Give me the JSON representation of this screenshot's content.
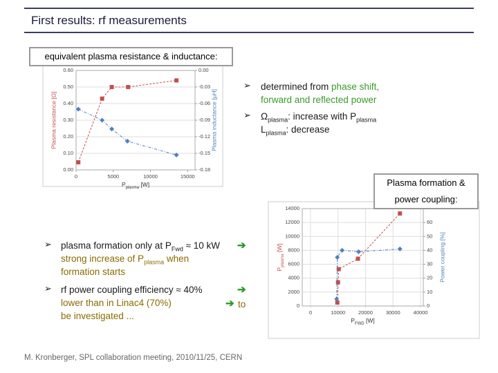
{
  "header": {
    "title": "First results: rf measurements"
  },
  "boxes": [
    "equivalent plasma resistance & inductance:",
    "Plasma formation & power coupling:"
  ],
  "right_bullets": [
    [
      [
        {
          "t": "determined from "
        },
        {
          "t": "phase shift,",
          "color": "#3a9a2a"
        }
      ],
      [
        {
          "t": "forward and reflected power",
          "color": "#3a9a2a"
        }
      ]
    ],
    [
      [
        {
          "t": "Ω"
        },
        {
          "t": "plasma",
          "sub": true
        },
        {
          "t": ": increase with P"
        },
        {
          "t": "plasma",
          "sub": true
        }
      ],
      [
        {
          "t": "L"
        },
        {
          "t": "plasma",
          "sub": true
        },
        {
          "t": ": decrease"
        }
      ]
    ]
  ],
  "left_bullets": [
    [
      [
        {
          "t": "plasma formation only at P"
        },
        {
          "t": "Fwd",
          "sub": true
        },
        {
          "t": " ≈ 10 kW"
        }
      ],
      [
        {
          "t": "strong increase of P",
          "color": "#8a6a00"
        },
        {
          "t": "plasma",
          "sub": true,
          "color": "#8a6a00"
        },
        {
          "t": " when",
          "color": "#8a6a00"
        }
      ],
      [
        {
          "t": "formation starts",
          "color": "#8a6a00"
        }
      ]
    ],
    [
      [
        {
          "t": "rf power coupling efficiency ≈ 40%"
        }
      ],
      [
        {
          "t": "lower than in Linac4 (70%)",
          "color": "#8a6a00"
        }
      ],
      [
        {
          "t": "be investigated ...",
          "color": "#8a6a00"
        }
      ]
    ]
  ],
  "to_text": "to",
  "footer": "M. Kronberger, SPL collaboration meeting, 2010/11/25, CERN",
  "chart_data": [
    {
      "type": "scatter",
      "x_label": [
        {
          "t": "P"
        },
        {
          "t": "plasma",
          "sub": true
        },
        {
          "t": " [W]"
        }
      ],
      "y_label": "Plasma resistance [Ω]",
      "y2_label": "Plasma inductance [µH]",
      "xlim": [
        0,
        16000
      ],
      "xticks": [
        0,
        5000,
        10000,
        15000
      ],
      "ylim": [
        0,
        0.6
      ],
      "yticks": [
        {
          "value": 0,
          "label": "0.00"
        },
        {
          "value": 0.1,
          "label": "0.10"
        },
        {
          "value": 0.2,
          "label": "0.20"
        },
        {
          "value": 0.3,
          "label": "0.30"
        },
        {
          "value": 0.4,
          "label": "0.40"
        },
        {
          "value": 0.5,
          "label": "0.50"
        },
        {
          "value": 0.6,
          "label": "0.60"
        }
      ],
      "y2lim": [
        -0.18,
        0
      ],
      "y2ticks": [
        {
          "value": 0,
          "label": "0.00"
        },
        {
          "value": -0.03,
          "label": "-0.03"
        },
        {
          "value": -0.06,
          "label": "-0.06"
        },
        {
          "value": -0.09,
          "label": "-0.09"
        },
        {
          "value": -0.12,
          "label": "-0.12"
        },
        {
          "value": -0.15,
          "label": "-0.15"
        },
        {
          "value": -0.18,
          "label": "-0.18"
        }
      ],
      "grid": true,
      "xgrid": false,
      "series": [
        {
          "color": "#c0504d",
          "marker": "square",
          "x": [
            300,
            3500,
            4800,
            7000,
            13500
          ],
          "values": [
            0.046,
            0.43,
            0.5,
            0.5,
            0.54
          ]
        },
        {
          "color": "#4f81bd",
          "marker": "diamond",
          "axis": "y2",
          "x": [
            300,
            3500,
            4800,
            6900,
            13500
          ],
          "values": [
            -0.07,
            -0.09,
            -0.106,
            -0.128,
            -0.153
          ]
        }
      ]
    },
    {
      "type": "scatter",
      "x_label": [
        {
          "t": "P"
        },
        {
          "t": "FWD",
          "sub": true
        },
        {
          "t": " [W]"
        }
      ],
      "y_label": [
        {
          "t": "P"
        },
        {
          "t": "plasma",
          "sub": true
        },
        {
          "t": " [W]"
        }
      ],
      "y2_label": "Power coupling [%]",
      "xlim": [
        -3000,
        41000
      ],
      "xticks": [
        0,
        10000,
        20000,
        30000,
        40000
      ],
      "ylim": [
        0,
        14000
      ],
      "yticks": [
        0,
        2000,
        4000,
        6000,
        8000,
        10000,
        12000,
        14000
      ],
      "y2lim": [
        0,
        70
      ],
      "y2ticks": [
        0,
        10,
        20,
        30,
        40,
        50,
        60
      ],
      "grid": true,
      "xgrid": true,
      "series": [
        {
          "color": "#c0504d",
          "marker": "square",
          "x": [
            9750,
            10000,
            10250,
            17250,
            32500
          ],
          "values": [
            500,
            3400,
            5300,
            6800,
            13300
          ]
        },
        {
          "color": "#4f81bd",
          "marker": "diamond",
          "axis": "y2",
          "x": [
            9500,
            9750,
            11500,
            17500,
            32500
          ],
          "values": [
            5,
            35,
            40,
            39,
            41
          ]
        }
      ]
    }
  ]
}
